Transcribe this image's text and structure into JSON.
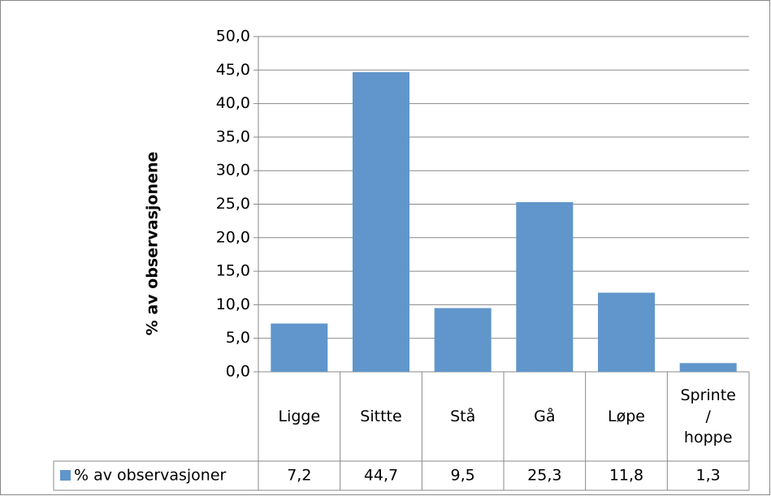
{
  "chart_data": {
    "type": "bar",
    "y_axis_label": "% av observasjonene",
    "categories": [
      "Ligge",
      "Sittte",
      "Stå",
      "Gå",
      "Løpe",
      "Sprinte / hoppe"
    ],
    "series": [
      {
        "name": "% av observasjoner",
        "color": "#6096cb",
        "values": [
          7.2,
          44.7,
          9.5,
          25.3,
          11.8,
          1.3
        ],
        "value_labels": [
          "7,2",
          "44,7",
          "9,5",
          "25,3",
          "11,8",
          "1,3"
        ]
      }
    ],
    "ylim": [
      0,
      50
    ],
    "yticks": [
      {
        "value": 0,
        "label": "0,0"
      },
      {
        "value": 5,
        "label": "5,0"
      },
      {
        "value": 10,
        "label": "10,0"
      },
      {
        "value": 15,
        "label": "15,0"
      },
      {
        "value": 20,
        "label": "20,0"
      },
      {
        "value": 25,
        "label": "25,0"
      },
      {
        "value": 30,
        "label": "30,0"
      },
      {
        "value": 35,
        "label": "35,0"
      },
      {
        "value": 40,
        "label": "40,0"
      },
      {
        "value": 45,
        "label": "45,0"
      },
      {
        "value": 50,
        "label": "50,0"
      }
    ],
    "grid": true,
    "data_table": true
  }
}
